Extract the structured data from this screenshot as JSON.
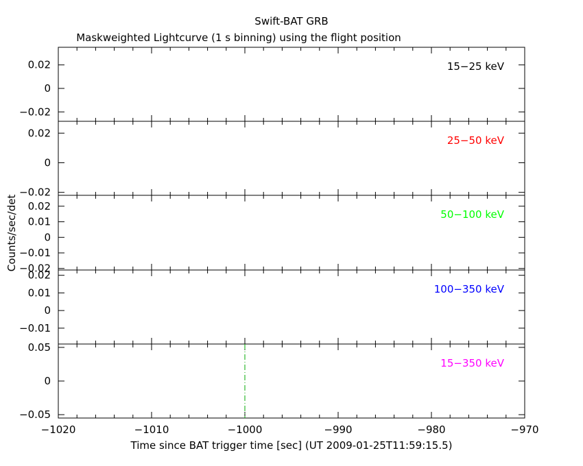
{
  "title": "Swift-BAT GRB",
  "subtitle": "Maskweighted Lightcurve (1 s binning) using the flight position",
  "xlabel": "Time since BAT trigger time [sec] (UT 2009-01-25T11:59:15.5)",
  "ylabel": "Counts/sec/det",
  "chart_data": [
    {
      "type": "line",
      "band_label": "15−25 keV",
      "label_color": "#000000",
      "xlim": [
        -1020,
        -970
      ],
      "ylim": [
        -0.028,
        0.035
      ],
      "yticks": [
        -0.02,
        0,
        0.02
      ],
      "ytick_labels": [
        "−0.02",
        "0",
        "0.02"
      ],
      "series": []
    },
    {
      "type": "line",
      "band_label": "25−50 keV",
      "label_color": "#ff0000",
      "xlim": [
        -1020,
        -970
      ],
      "ylim": [
        -0.022,
        0.028
      ],
      "yticks": [
        -0.02,
        0,
        0.02
      ],
      "ytick_labels": [
        "−0.02",
        "0",
        "0.02"
      ],
      "series": []
    },
    {
      "type": "line",
      "band_label": "50−100 keV",
      "label_color": "#00ff00",
      "xlim": [
        -1020,
        -970
      ],
      "ylim": [
        -0.021,
        0.027
      ],
      "yticks": [
        -0.02,
        -0.01,
        0,
        0.01,
        0.02
      ],
      "ytick_labels": [
        "−0.02",
        "−0.01",
        "0",
        "0.01",
        "0.02"
      ],
      "series": []
    },
    {
      "type": "line",
      "band_label": "100−350 keV",
      "label_color": "#0000ff",
      "xlim": [
        -1020,
        -970
      ],
      "ylim": [
        -0.019,
        0.023
      ],
      "yticks": [
        -0.01,
        0,
        0.01,
        0.02
      ],
      "ytick_labels": [
        "−0.01",
        "0",
        "0.01",
        "0.02"
      ],
      "series": []
    },
    {
      "type": "line",
      "band_label": "15−350 keV",
      "label_color": "#ff00ff",
      "xlim": [
        -1020,
        -970
      ],
      "ylim": [
        -0.055,
        0.055
      ],
      "yticks": [
        -0.05,
        0,
        0.05
      ],
      "ytick_labels": [
        "−0.05",
        "0",
        "0.05"
      ],
      "series": [],
      "vline": {
        "x": -1000,
        "color": "#00aa00",
        "style": "dash-dot"
      }
    }
  ],
  "xaxis": {
    "ticks": [
      -1020,
      -1010,
      -1000,
      -990,
      -980,
      -970
    ],
    "tick_labels": [
      "−1020",
      "−1010",
      "−1000",
      "−990",
      "−980",
      "−970"
    ]
  }
}
